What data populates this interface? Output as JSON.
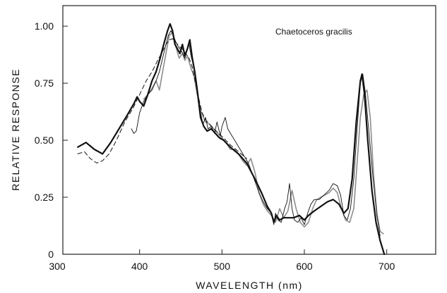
{
  "chart_data": {
    "type": "line",
    "title": "",
    "annotation": "Chaetoceros gracilis",
    "xlabel": "WAVELENGTH (nm)",
    "ylabel": "RELATIVE RESPONSE",
    "xlim": [
      300,
      720
    ],
    "ylim": [
      0,
      1.09
    ],
    "x_ticks": [
      300,
      400,
      500,
      600,
      700
    ],
    "x_tick_labels": [
      "300",
      "400",
      "500",
      "600",
      "700"
    ],
    "y_ticks": [
      0,
      0.25,
      0.5,
      0.75,
      1.0
    ],
    "y_tick_labels": [
      "0",
      "0.25",
      "0.50",
      "0.75",
      "1.00"
    ],
    "grid": false,
    "legend": "none",
    "series": [
      {
        "style": "thick",
        "color": "#111111",
        "points": [
          [
            325,
            0.47
          ],
          [
            335,
            0.49
          ],
          [
            345,
            0.46
          ],
          [
            355,
            0.44
          ],
          [
            365,
            0.49
          ],
          [
            375,
            0.55
          ],
          [
            385,
            0.61
          ],
          [
            393,
            0.66
          ],
          [
            397,
            0.69
          ],
          [
            400,
            0.67
          ],
          [
            405,
            0.65
          ],
          [
            410,
            0.7
          ],
          [
            415,
            0.76
          ],
          [
            420,
            0.8
          ],
          [
            425,
            0.86
          ],
          [
            430,
            0.93
          ],
          [
            434,
            0.98
          ],
          [
            437,
            1.01
          ],
          [
            440,
            0.98
          ],
          [
            443,
            0.92
          ],
          [
            446,
            0.9
          ],
          [
            449,
            0.88
          ],
          [
            452,
            0.92
          ],
          [
            455,
            0.87
          ],
          [
            458,
            0.9
          ],
          [
            461,
            0.94
          ],
          [
            464,
            0.86
          ],
          [
            467,
            0.8
          ],
          [
            470,
            0.72
          ],
          [
            474,
            0.6
          ],
          [
            478,
            0.56
          ],
          [
            482,
            0.54
          ],
          [
            487,
            0.55
          ],
          [
            492,
            0.53
          ],
          [
            497,
            0.51
          ],
          [
            502,
            0.5
          ],
          [
            510,
            0.47
          ],
          [
            520,
            0.44
          ],
          [
            530,
            0.4
          ],
          [
            540,
            0.33
          ],
          [
            548,
            0.27
          ],
          [
            555,
            0.21
          ],
          [
            560,
            0.18
          ],
          [
            563,
            0.14
          ],
          [
            566,
            0.17
          ],
          [
            570,
            0.15
          ],
          [
            575,
            0.16
          ],
          [
            580,
            0.16
          ],
          [
            587,
            0.16
          ],
          [
            594,
            0.17
          ],
          [
            600,
            0.15
          ],
          [
            605,
            0.17
          ],
          [
            612,
            0.19
          ],
          [
            620,
            0.21
          ],
          [
            628,
            0.23
          ],
          [
            635,
            0.24
          ],
          [
            642,
            0.22
          ],
          [
            648,
            0.18
          ],
          [
            653,
            0.2
          ],
          [
            658,
            0.33
          ],
          [
            663,
            0.58
          ],
          [
            668,
            0.76
          ],
          [
            670,
            0.79
          ],
          [
            673,
            0.7
          ],
          [
            677,
            0.5
          ],
          [
            682,
            0.28
          ],
          [
            687,
            0.14
          ],
          [
            692,
            0.06
          ],
          [
            697,
            0.0
          ]
        ]
      },
      {
        "style": "thin",
        "color": "#111111",
        "points": [
          [
            390,
            0.55
          ],
          [
            393,
            0.53
          ],
          [
            396,
            0.54
          ],
          [
            400,
            0.62
          ],
          [
            405,
            0.67
          ],
          [
            410,
            0.7
          ],
          [
            415,
            0.72
          ],
          [
            420,
            0.76
          ],
          [
            424,
            0.8
          ],
          [
            428,
            0.86
          ],
          [
            432,
            0.92
          ],
          [
            435,
            0.96
          ],
          [
            438,
            0.98
          ],
          [
            441,
            0.96
          ],
          [
            444,
            0.93
          ],
          [
            447,
            0.91
          ],
          [
            451,
            0.89
          ],
          [
            455,
            0.86
          ],
          [
            458,
            0.9
          ],
          [
            460,
            0.92
          ],
          [
            463,
            0.86
          ],
          [
            466,
            0.82
          ],
          [
            470,
            0.73
          ],
          [
            474,
            0.62
          ],
          [
            477,
            0.57
          ],
          [
            480,
            0.6
          ],
          [
            483,
            0.55
          ],
          [
            487,
            0.56
          ],
          [
            491,
            0.53
          ],
          [
            494,
            0.58
          ],
          [
            498,
            0.52
          ],
          [
            500,
            0.56
          ],
          [
            504,
            0.6
          ],
          [
            507,
            0.55
          ],
          [
            512,
            0.52
          ],
          [
            517,
            0.49
          ],
          [
            522,
            0.46
          ],
          [
            527,
            0.43
          ],
          [
            532,
            0.4
          ],
          [
            538,
            0.34
          ],
          [
            545,
            0.27
          ],
          [
            550,
            0.23
          ],
          [
            555,
            0.2
          ],
          [
            560,
            0.18
          ],
          [
            563,
            0.13
          ],
          [
            565,
            0.18
          ],
          [
            568,
            0.15
          ],
          [
            572,
            0.14
          ],
          [
            576,
            0.2
          ],
          [
            579,
            0.23
          ],
          [
            582,
            0.31
          ],
          [
            585,
            0.2
          ],
          [
            588,
            0.15
          ],
          [
            592,
            0.14
          ],
          [
            596,
            0.16
          ],
          [
            600,
            0.13
          ],
          [
            604,
            0.18
          ],
          [
            608,
            0.22
          ],
          [
            612,
            0.24
          ],
          [
            618,
            0.24
          ],
          [
            624,
            0.26
          ],
          [
            630,
            0.28
          ],
          [
            635,
            0.31
          ],
          [
            640,
            0.3
          ],
          [
            644,
            0.26
          ],
          [
            648,
            0.17
          ],
          [
            652,
            0.15
          ],
          [
            656,
            0.2
          ],
          [
            660,
            0.33
          ],
          [
            664,
            0.55
          ],
          [
            668,
            0.75
          ],
          [
            671,
            0.79
          ],
          [
            674,
            0.71
          ],
          [
            678,
            0.55
          ],
          [
            683,
            0.35
          ],
          [
            688,
            0.17
          ],
          [
            692,
            0.08
          ]
        ]
      },
      {
        "style": "gray",
        "color": "#8c8c8c",
        "points": [
          [
            405,
            0.68
          ],
          [
            410,
            0.7
          ],
          [
            414,
            0.72
          ],
          [
            417,
            0.74
          ],
          [
            420,
            0.76
          ],
          [
            424,
            0.72
          ],
          [
            428,
            0.8
          ],
          [
            432,
            0.88
          ],
          [
            436,
            0.96
          ],
          [
            440,
            0.97
          ],
          [
            444,
            0.91
          ],
          [
            448,
            0.86
          ],
          [
            452,
            0.88
          ],
          [
            455,
            0.85
          ],
          [
            458,
            0.87
          ],
          [
            462,
            0.82
          ],
          [
            466,
            0.78
          ],
          [
            470,
            0.7
          ],
          [
            475,
            0.62
          ],
          [
            480,
            0.58
          ],
          [
            485,
            0.57
          ],
          [
            490,
            0.55
          ],
          [
            495,
            0.53
          ],
          [
            500,
            0.51
          ],
          [
            505,
            0.49
          ],
          [
            510,
            0.46
          ],
          [
            515,
            0.46
          ],
          [
            520,
            0.44
          ],
          [
            525,
            0.41
          ],
          [
            530,
            0.39
          ],
          [
            535,
            0.42
          ],
          [
            540,
            0.36
          ],
          [
            545,
            0.27
          ],
          [
            550,
            0.22
          ],
          [
            555,
            0.19
          ],
          [
            560,
            0.17
          ],
          [
            565,
            0.14
          ],
          [
            570,
            0.2
          ],
          [
            575,
            0.16
          ],
          [
            580,
            0.19
          ],
          [
            585,
            0.28
          ],
          [
            590,
            0.2
          ],
          [
            595,
            0.14
          ],
          [
            600,
            0.12
          ],
          [
            605,
            0.14
          ],
          [
            610,
            0.2
          ],
          [
            615,
            0.24
          ],
          [
            620,
            0.25
          ],
          [
            625,
            0.26
          ],
          [
            630,
            0.27
          ],
          [
            635,
            0.29
          ],
          [
            640,
            0.27
          ],
          [
            645,
            0.2
          ],
          [
            650,
            0.15
          ],
          [
            655,
            0.14
          ],
          [
            660,
            0.2
          ],
          [
            664,
            0.4
          ],
          [
            668,
            0.6
          ],
          [
            672,
            0.7
          ],
          [
            676,
            0.72
          ],
          [
            680,
            0.6
          ],
          [
            684,
            0.35
          ],
          [
            688,
            0.18
          ],
          [
            692,
            0.1
          ],
          [
            696,
            0.09
          ]
        ]
      },
      {
        "style": "dashed",
        "color": "#111111",
        "points": [
          [
            325,
            0.44
          ],
          [
            333,
            0.45
          ],
          [
            340,
            0.42
          ],
          [
            348,
            0.4
          ],
          [
            355,
            0.41
          ],
          [
            363,
            0.44
          ],
          [
            372,
            0.5
          ],
          [
            382,
            0.58
          ],
          [
            392,
            0.64
          ],
          [
            400,
            0.7
          ],
          [
            408,
            0.76
          ],
          [
            415,
            0.8
          ],
          [
            422,
            0.85
          ],
          [
            428,
            0.89
          ],
          [
            432,
            0.92
          ],
          [
            436,
            0.94
          ],
          [
            440,
            0.945
          ],
          [
            444,
            0.93
          ],
          [
            448,
            0.91
          ],
          [
            452,
            0.9
          ],
          [
            456,
            0.88
          ],
          [
            460,
            0.86
          ],
          [
            464,
            0.82
          ],
          [
            468,
            0.75
          ],
          [
            472,
            0.68
          ],
          [
            476,
            0.62
          ],
          [
            480,
            0.59
          ],
          [
            485,
            0.57
          ],
          [
            490,
            0.55
          ],
          [
            496,
            0.53
          ],
          [
            502,
            0.51
          ],
          [
            510,
            0.48
          ],
          [
            520,
            0.45
          ],
          [
            530,
            0.42
          ]
        ]
      }
    ]
  }
}
